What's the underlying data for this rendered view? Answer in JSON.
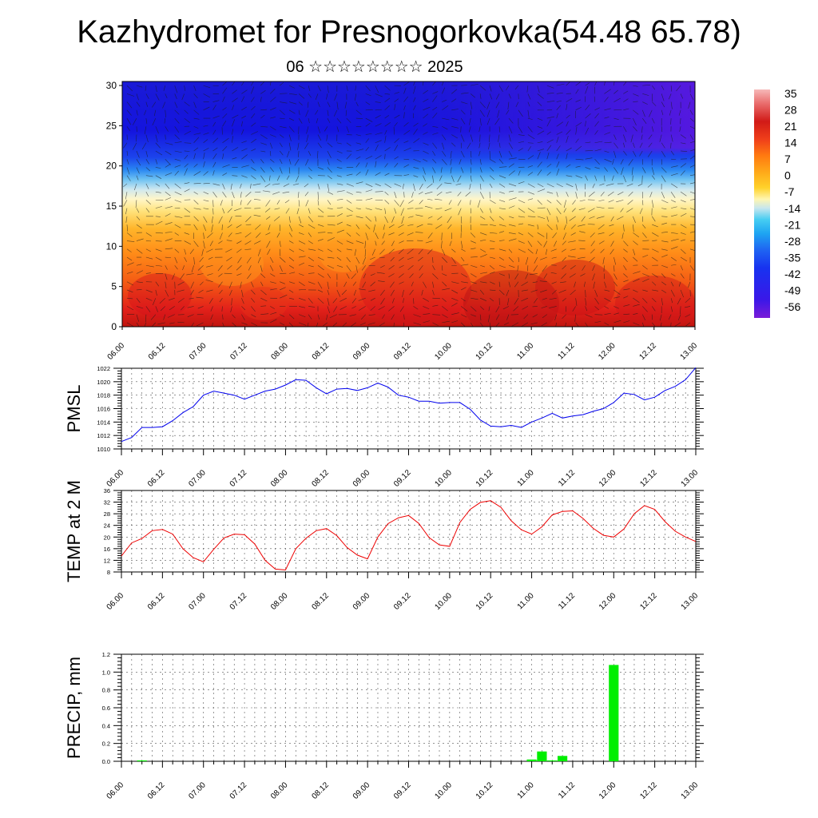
{
  "header": {
    "title": "Kazhydromet for Presnogorkovka(54.48 65.78)",
    "subtitle": "06 ☆☆☆☆☆☆☆☆ 2025"
  },
  "chart_data": [
    {
      "type": "heatmap",
      "title": "Kazhydromet for Presnogorkovka(54.48 65.78)",
      "subtitle": "06 ☆☆☆☆☆☆☆☆ 2025",
      "x_ticks": [
        "06.00",
        "06.12",
        "07.00",
        "07.12",
        "08.00",
        "08.12",
        "09.00",
        "09.12",
        "10.00",
        "10.12",
        "11.00",
        "11.12",
        "12.00",
        "12.12",
        "13.00"
      ],
      "y_ticks": [
        0,
        5,
        10,
        15,
        20,
        25,
        30
      ],
      "ylim": [
        0,
        30.5
      ],
      "colorbar": {
        "labels": [
          "35",
          "28",
          "21",
          "14",
          "7",
          "0",
          "-7",
          "-14",
          "-21",
          "-28",
          "-35",
          "-42",
          "-49",
          "-56"
        ],
        "range": [
          -60,
          36
        ],
        "colors": [
          "#7a1cd8",
          "#3a17e8",
          "#1733f0",
          "#1f66f2",
          "#1ea5f2",
          "#46cdf2",
          "#c6e6ee",
          "#fff6b0",
          "#ffd22a",
          "#ffa818",
          "#ff7a10",
          "#f0401a",
          "#d11a17",
          "#ea6e6e",
          "#f6b9b9"
        ]
      },
      "field": "temperature with wind vectors (0-30 levels)"
    },
    {
      "type": "line",
      "ylabel": "PMSL",
      "ylim": [
        1010,
        1022
      ],
      "y_ticks": [
        1010,
        1012,
        1014,
        1016,
        1018,
        1020,
        1022
      ],
      "x_ticks": [
        "06.00",
        "06.12",
        "07.00",
        "07.12",
        "08.00",
        "08.12",
        "09.00",
        "09.12",
        "10.00",
        "10.12",
        "11.00",
        "11.12",
        "12.00",
        "12.12",
        "13.00"
      ],
      "color": "#0000ee",
      "x_step_hours": 3,
      "values": [
        1011.1,
        1011.7,
        1013.2,
        1013.2,
        1013.3,
        1014.2,
        1015.4,
        1016.3,
        1018.0,
        1018.6,
        1018.3,
        1018.0,
        1017.4,
        1018.0,
        1018.6,
        1018.9,
        1019.5,
        1020.3,
        1020.2,
        1019.1,
        1018.2,
        1018.9,
        1019.0,
        1018.7,
        1019.1,
        1019.8,
        1019.2,
        1018.0,
        1017.7,
        1017.1,
        1017.1,
        1016.8,
        1016.9,
        1016.9,
        1015.9,
        1014.3,
        1013.4,
        1013.3,
        1013.5,
        1013.2,
        1014.0,
        1014.6,
        1015.3,
        1014.6,
        1014.9,
        1015.1,
        1015.6,
        1016.0,
        1016.9,
        1018.3,
        1018.1,
        1017.3,
        1017.7,
        1018.7,
        1019.3,
        1020.3,
        1022.1
      ]
    },
    {
      "type": "line",
      "ylabel": "TEMP at 2 M",
      "ylim": [
        8,
        36
      ],
      "y_ticks": [
        8,
        12,
        16,
        20,
        24,
        28,
        32,
        36
      ],
      "x_ticks": [
        "06.00",
        "06.12",
        "07.00",
        "07.12",
        "08.00",
        "08.12",
        "09.00",
        "09.12",
        "10.00",
        "10.12",
        "11.00",
        "11.12",
        "12.00",
        "12.12",
        "13.00"
      ],
      "color": "#ee0000",
      "x_step_hours": 3,
      "values": [
        13.5,
        18.0,
        19.5,
        22.2,
        22.6,
        21.0,
        16.0,
        12.9,
        11.5,
        15.8,
        19.7,
        21.0,
        20.8,
        17.6,
        12.0,
        9.0,
        8.7,
        16.0,
        19.6,
        22.2,
        22.9,
        20.5,
        16.4,
        13.8,
        12.5,
        20.0,
        24.6,
        26.6,
        27.4,
        24.7,
        19.8,
        17.3,
        16.8,
        25.0,
        29.5,
        31.9,
        32.5,
        30.2,
        25.6,
        22.5,
        21.0,
        23.5,
        27.6,
        28.8,
        29.0,
        26.4,
        23.0,
        20.6,
        20.0,
        22.8,
        28.0,
        30.8,
        29.5,
        25.3,
        22.0,
        20.0,
        18.5
      ]
    },
    {
      "type": "bar",
      "ylabel": "PRECIP, mm",
      "ylim": [
        0,
        1.2
      ],
      "y_ticks": [
        "0.0",
        "0.2",
        "0.4",
        "0.6",
        "0.8",
        "1.0",
        "1.2"
      ],
      "x_ticks": [
        "06.00",
        "06.12",
        "07.00",
        "07.12",
        "08.00",
        "08.12",
        "09.00",
        "09.12",
        "10.00",
        "10.12",
        "11.00",
        "11.12",
        "12.00",
        "12.12",
        "13.00"
      ],
      "color": "#00ee00",
      "x_step_hours": 3,
      "values": [
        0,
        0,
        0.01,
        0,
        0,
        0,
        0,
        0,
        0,
        0,
        0,
        0,
        0,
        0,
        0,
        0,
        0,
        0,
        0,
        0,
        0,
        0,
        0,
        0,
        0,
        0,
        0,
        0,
        0,
        0,
        0,
        0,
        0,
        0,
        0,
        0,
        0,
        0,
        0,
        0,
        0.02,
        0.11,
        0.01,
        0.06,
        0,
        0,
        0,
        0,
        1.08,
        0,
        0,
        0,
        0,
        0,
        0,
        0,
        0
      ]
    }
  ]
}
